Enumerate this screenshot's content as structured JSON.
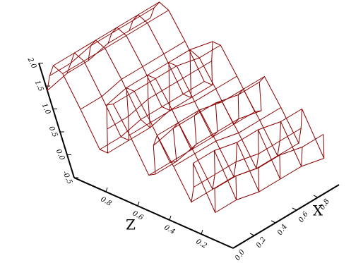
{
  "chart_data": {
    "type": "surface",
    "x": [
      0,
      0.2,
      0.4,
      0.6,
      0.8,
      1
    ],
    "z": [
      0,
      0.05,
      0.1,
      0.15,
      0.2,
      0.25,
      0.3,
      0.35,
      0.4,
      0.45,
      0.5,
      0.55,
      0.6,
      0.65,
      0.7,
      0.75,
      0.8,
      0.85,
      0.9,
      0.95,
      1
    ],
    "values": [
      [
        0.8,
        0.2,
        1.2,
        0.6,
        0.2,
        0.9,
        1.5,
        1.2,
        0.5,
        0.4,
        1.2,
        1.8,
        1.7,
        1.1,
        0.5,
        0.5,
        1.3,
        2.0,
        2.1,
        1.8,
        1.4
      ],
      [
        0.8,
        0.2,
        1.2,
        0.6,
        0.2,
        0.9,
        1.5,
        1.3,
        0.5,
        0.4,
        1.2,
        1.8,
        1.8,
        1.1,
        0.5,
        0.5,
        1.3,
        2.0,
        2.1,
        1.8,
        1.5
      ],
      [
        0.7,
        0.1,
        1.1,
        0.6,
        0.2,
        0.9,
        1.5,
        1.3,
        0.6,
        0.4,
        1.2,
        1.8,
        1.8,
        1.2,
        0.5,
        0.6,
        1.4,
        2.0,
        2.1,
        1.9,
        1.5
      ],
      [
        0.7,
        0.1,
        1.1,
        0.5,
        0.1,
        0.8,
        1.4,
        1.3,
        0.6,
        0.4,
        1.1,
        1.8,
        1.8,
        1.2,
        0.6,
        0.6,
        1.4,
        2.0,
        2.1,
        1.9,
        1.6
      ],
      [
        0.6,
        0.1,
        1.0,
        0.5,
        0.1,
        0.8,
        1.4,
        1.2,
        0.6,
        0.4,
        1.1,
        1.7,
        1.8,
        1.2,
        0.6,
        0.6,
        1.4,
        2.0,
        2.1,
        1.9,
        1.6
      ],
      [
        0.6,
        0.0,
        1.0,
        0.5,
        0.1,
        0.8,
        1.4,
        1.2,
        0.5,
        0.4,
        1.1,
        1.7,
        1.7,
        1.2,
        0.6,
        0.6,
        1.4,
        2.0,
        2.1,
        1.9,
        1.6
      ]
    ],
    "color": "#8b0000",
    "xlabel": "X",
    "zlabel": "Z",
    "xlim": [
      0,
      1
    ],
    "zlim": [
      0,
      1
    ],
    "ylim": [
      -0.5,
      2
    ],
    "xticks": [
      {
        "value": 0,
        "label": "0.0"
      },
      0.2,
      0.4,
      0.6,
      0.8
    ],
    "zticks": [
      0.2,
      0.4,
      0.6,
      0.8
    ],
    "yticks": [
      -0.5,
      {
        "value": 0,
        "label": "0.0"
      },
      0.5,
      {
        "value": 1,
        "label": "1.0"
      },
      1.5,
      {
        "value": 2,
        "label": "2.0"
      }
    ]
  }
}
